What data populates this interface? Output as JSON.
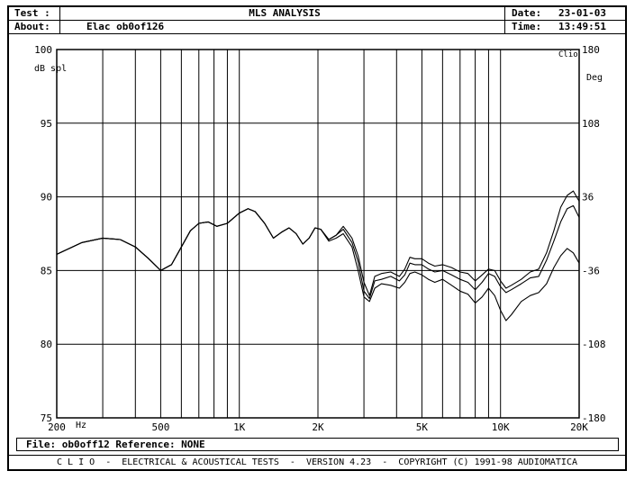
{
  "header": {
    "test_label": "Test :",
    "title": "MLS ANALYSIS",
    "date_label": "Date:",
    "date_value": "23-01-03",
    "about_label": "About:",
    "about_value": "Elac ob0of126",
    "time_label": "Time:",
    "time_value": "13:49:51"
  },
  "footer": {
    "file_line": "File: ob0off12 Reference: NONE",
    "credits": "C L I O  -  ELECTRICAL & ACOUSTICAL TESTS  -  VERSION 4.23  -  COPYRIGHT (C) 1991-98 AUDIOMATICA"
  },
  "chart_data": {
    "type": "line",
    "title": "MLS ANALYSIS",
    "xscale": "log",
    "xlim": [
      200,
      20000
    ],
    "ylim": [
      75,
      100
    ],
    "y2lim": [
      -180,
      180
    ],
    "ylabel": "dB spl",
    "y2label": "Deg",
    "y2_corner_label": "Clio",
    "grid": true,
    "x_ticks": [
      200,
      500,
      1000,
      2000,
      5000,
      10000,
      20000
    ],
    "x_tick_labels": [
      "200",
      "500",
      "1K",
      "2K",
      "5K",
      "10K",
      "20K"
    ],
    "x_unit_label": "Hz",
    "y_ticks": [
      75,
      80,
      85,
      90,
      95,
      100
    ],
    "y_tick_labels": [
      "75",
      "80",
      "85",
      "90",
      "95",
      "100"
    ],
    "y2_ticks": [
      -180,
      -108,
      -36,
      36,
      108,
      180
    ],
    "y2_tick_labels": [
      "-180",
      "-108",
      "-36",
      "36",
      "108",
      "180"
    ],
    "series": [
      {
        "x": [
          200,
          250,
          300,
          350,
          400,
          450,
          500,
          550,
          600,
          650,
          700,
          760,
          820,
          900,
          1000,
          1080,
          1150,
          1250,
          1350,
          1450,
          1550,
          1650,
          1750,
          1850,
          1950,
          2050,
          2200,
          2350,
          2500,
          2700,
          2850,
          3000,
          3150,
          3300,
          3500,
          3800,
          4100,
          4300,
          4500,
          4700,
          5000,
          5300,
          5600,
          6000,
          6500,
          7000,
          7500,
          8000,
          8500,
          9000,
          9500,
          10000,
          10500,
          11000,
          12000,
          13000,
          14000,
          15000,
          16000,
          17000,
          18000,
          19000,
          20000
        ],
        "values": [
          86.1,
          86.9,
          87.2,
          87.1,
          86.6,
          85.8,
          85.0,
          85.4,
          86.6,
          87.7,
          88.2,
          88.3,
          88.0,
          88.2,
          88.9,
          89.2,
          89.0,
          88.2,
          87.2,
          87.6,
          87.9,
          87.5,
          86.8,
          87.2,
          87.9,
          87.8,
          87.1,
          87.4,
          88.0,
          87.2,
          86.0,
          84.2,
          83.3,
          84.6,
          84.8,
          84.9,
          84.6,
          85.1,
          85.9,
          85.8,
          85.8,
          85.5,
          85.3,
          85.4,
          85.2,
          84.9,
          84.8,
          84.3,
          84.7,
          85.1,
          85.0,
          84.3,
          83.8,
          84.0,
          84.4,
          84.9,
          85.1,
          86.2,
          87.7,
          89.3,
          90.1,
          90.4,
          89.7
        ]
      },
      {
        "x": [
          200,
          250,
          300,
          350,
          400,
          450,
          500,
          550,
          600,
          650,
          700,
          760,
          820,
          900,
          1000,
          1080,
          1150,
          1250,
          1350,
          1450,
          1550,
          1650,
          1750,
          1850,
          1950,
          2050,
          2200,
          2350,
          2500,
          2700,
          2850,
          3000,
          3150,
          3300,
          3500,
          3800,
          4100,
          4300,
          4500,
          4700,
          5000,
          5300,
          5600,
          6000,
          6500,
          7000,
          7500,
          8000,
          8500,
          9000,
          9500,
          10000,
          10500,
          11000,
          12000,
          13000,
          14000,
          15000,
          16000,
          17000,
          18000,
          19000,
          20000
        ],
        "values": [
          86.1,
          86.9,
          87.2,
          87.1,
          86.6,
          85.8,
          85.0,
          85.4,
          86.6,
          87.7,
          88.2,
          88.3,
          88.0,
          88.2,
          88.9,
          89.2,
          89.0,
          88.2,
          87.2,
          87.6,
          87.9,
          87.5,
          86.8,
          87.2,
          87.9,
          87.8,
          87.1,
          87.4,
          87.8,
          86.9,
          85.6,
          83.6,
          83.1,
          84.3,
          84.4,
          84.6,
          84.3,
          84.7,
          85.5,
          85.4,
          85.4,
          85.1,
          84.9,
          85.0,
          84.7,
          84.4,
          84.2,
          83.7,
          84.2,
          84.8,
          84.6,
          83.9,
          83.5,
          83.7,
          84.1,
          84.5,
          84.6,
          85.7,
          87.0,
          88.3,
          89.2,
          89.4,
          88.6
        ]
      },
      {
        "x": [
          200,
          250,
          300,
          350,
          400,
          450,
          500,
          550,
          600,
          650,
          700,
          760,
          820,
          900,
          1000,
          1080,
          1150,
          1250,
          1350,
          1450,
          1550,
          1650,
          1750,
          1850,
          1950,
          2050,
          2200,
          2350,
          2500,
          2700,
          2850,
          3000,
          3150,
          3300,
          3500,
          3800,
          4100,
          4300,
          4500,
          4700,
          5000,
          5300,
          5600,
          6000,
          6500,
          7000,
          7500,
          8000,
          8500,
          9000,
          9500,
          10000,
          10500,
          11000,
          12000,
          13000,
          14000,
          15000,
          16000,
          17000,
          18000,
          19000,
          20000
        ],
        "values": [
          86.1,
          86.9,
          87.2,
          87.1,
          86.6,
          85.8,
          85.0,
          85.4,
          86.6,
          87.7,
          88.2,
          88.3,
          88.0,
          88.2,
          88.9,
          89.2,
          89.0,
          88.2,
          87.2,
          87.6,
          87.9,
          87.5,
          86.8,
          87.2,
          87.9,
          87.8,
          87.0,
          87.2,
          87.5,
          86.6,
          85.0,
          83.2,
          82.9,
          83.8,
          84.1,
          84.0,
          83.8,
          84.2,
          84.8,
          84.9,
          84.7,
          84.4,
          84.2,
          84.4,
          84.0,
          83.6,
          83.4,
          82.8,
          83.2,
          83.8,
          83.3,
          82.3,
          81.6,
          82.0,
          82.9,
          83.3,
          83.5,
          84.1,
          85.2,
          86.0,
          86.5,
          86.2,
          85.5
        ]
      }
    ]
  }
}
